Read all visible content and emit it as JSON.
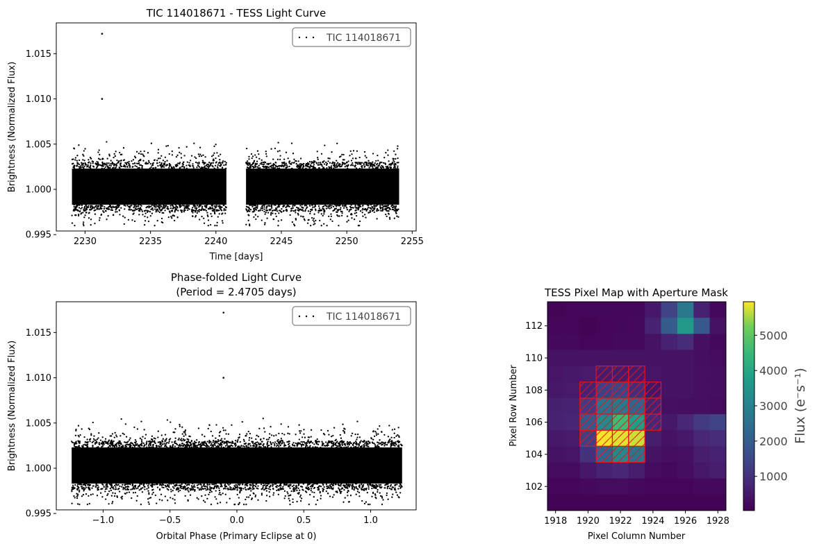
{
  "chart_data": [
    {
      "type": "scatter",
      "title": "TIC 114018671 - TESS Light Curve",
      "xlabel": "Time [days]",
      "ylabel": "Brightness (Normalized Flux)",
      "xlim": [
        2227.8,
        2255.3
      ],
      "ylim": [
        0.9954,
        1.0184
      ],
      "xticks": [
        2230,
        2235,
        2240,
        2245,
        2250,
        2255
      ],
      "yticks": [
        0.995,
        1.0,
        1.005,
        1.01,
        1.015
      ],
      "xtick_labels": [
        "2230",
        "2235",
        "2240",
        "2245",
        "2250",
        "2255"
      ],
      "ytick_labels": [
        "0.995",
        "1.000",
        "1.005",
        "1.010",
        "1.015"
      ],
      "legend": {
        "label": "TIC 114018671",
        "loc": "upper right"
      },
      "series": [
        {
          "segments": [
            {
              "x_start": 2229.0,
              "x_end": 2240.8
            },
            {
              "x_start": 2242.3,
              "x_end": 2254.0
            }
          ],
          "core_band": [
            0.9983,
            1.0023
          ],
          "scatter_range": [
            0.996,
            1.0055
          ],
          "outliers": [
            {
              "x": 2231.3,
              "y": 1.0172
            },
            {
              "x": 2231.3,
              "y": 1.01
            }
          ]
        }
      ]
    },
    {
      "type": "scatter",
      "title": "Phase-folded Light Curve\n(Period = 2.4705 days)",
      "title_lines": [
        "Phase-folded Light Curve",
        "(Period = 2.4705 days)"
      ],
      "xlabel": "Orbital Phase (Primary Eclipse at 0)",
      "ylabel": "Brightness (Normalized Flux)",
      "xlim": [
        -1.35,
        1.34
      ],
      "ylim": [
        0.9954,
        1.0184
      ],
      "xticks": [
        -1.0,
        -0.5,
        0.0,
        0.5,
        1.0
      ],
      "yticks": [
        0.995,
        1.0,
        1.005,
        1.01,
        1.015
      ],
      "xtick_labels": [
        "−1.0",
        "−0.5",
        "0.0",
        "0.5",
        "1.0"
      ],
      "ytick_labels": [
        "0.995",
        "1.000",
        "1.005",
        "1.010",
        "1.015"
      ],
      "legend": {
        "label": "TIC 114018671",
        "loc": "upper right"
      },
      "series": [
        {
          "segments": [
            {
              "x_start": -1.235,
              "x_end": 1.235
            }
          ],
          "core_band": [
            0.9983,
            1.0023
          ],
          "scatter_range": [
            0.996,
            1.0055
          ],
          "outliers": [
            {
              "x": -0.1,
              "y": 1.0172
            },
            {
              "x": -0.1,
              "y": 1.01
            }
          ]
        }
      ]
    },
    {
      "type": "heatmap",
      "title": "TESS Pixel Map with Aperture Mask",
      "xlabel": "Pixel Column Number",
      "ylabel": "Pixel Row Number",
      "x_start": 1917.5,
      "y_start": 100.5,
      "nx": 11,
      "ny": 13,
      "xlim": [
        1917.5,
        1928.5
      ],
      "ylim": [
        100.5,
        113.5
      ],
      "xticks": [
        1918,
        1920,
        1922,
        1924,
        1926,
        1928
      ],
      "yticks": [
        102,
        104,
        106,
        108,
        110,
        112
      ],
      "xtick_labels": [
        "1918",
        "1920",
        "1922",
        "1924",
        "1926",
        "1928"
      ],
      "ytick_labels": [
        "102",
        "104",
        "106",
        "108",
        "110",
        "112"
      ],
      "colormap": "viridis",
      "vmin": 50,
      "vmax": 5950,
      "colorbar": {
        "label": "Flux (e⁻s⁻¹)",
        "ticks": [
          1000,
          2000,
          3000,
          4000,
          5000
        ],
        "tick_labels": [
          "1000",
          "2000",
          "3000",
          "4000",
          "5000"
        ]
      },
      "values_rows_top_to_bottom": [
        [
          120,
          150,
          170,
          170,
          170,
          170,
          500,
          1400,
          2700,
          700,
          200
        ],
        [
          150,
          150,
          100,
          150,
          170,
          190,
          700,
          2000,
          3600,
          1900,
          400
        ],
        [
          200,
          200,
          150,
          150,
          200,
          200,
          380,
          700,
          900,
          350,
          200
        ],
        [
          380,
          380,
          380,
          380,
          380,
          380,
          380,
          400,
          400,
          300,
          250
        ],
        [
          450,
          500,
          550,
          550,
          550,
          550,
          450,
          400,
          400,
          350,
          300
        ],
        [
          500,
          550,
          700,
          1300,
          1400,
          900,
          450,
          400,
          400,
          350,
          300
        ],
        [
          650,
          700,
          1200,
          2500,
          2700,
          2200,
          700,
          350,
          300,
          300,
          250
        ],
        [
          700,
          750,
          1900,
          3200,
          4600,
          3800,
          800,
          500,
          800,
          1200,
          1400
        ],
        [
          500,
          550,
          1300,
          5900,
          5800,
          5700,
          600,
          400,
          500,
          800,
          900
        ],
        [
          400,
          450,
          1000,
          2200,
          3200,
          2600,
          400,
          300,
          350,
          600,
          700
        ],
        [
          250,
          250,
          500,
          700,
          800,
          600,
          250,
          200,
          300,
          500,
          600
        ],
        [
          150,
          150,
          200,
          250,
          250,
          200,
          150,
          150,
          150,
          200,
          200
        ],
        [
          100,
          100,
          100,
          100,
          100,
          100,
          100,
          100,
          100,
          100,
          100
        ]
      ],
      "aperture_mask_pixels": [
        [
          1921,
          109
        ],
        [
          1922,
          109
        ],
        [
          1923,
          109
        ],
        [
          1920,
          108
        ],
        [
          1921,
          108
        ],
        [
          1922,
          108
        ],
        [
          1923,
          108
        ],
        [
          1924,
          108
        ],
        [
          1920,
          107
        ],
        [
          1921,
          107
        ],
        [
          1922,
          107
        ],
        [
          1923,
          107
        ],
        [
          1924,
          107
        ],
        [
          1920,
          106
        ],
        [
          1921,
          106
        ],
        [
          1922,
          106
        ],
        [
          1923,
          106
        ],
        [
          1924,
          106
        ],
        [
          1920,
          105
        ],
        [
          1921,
          105
        ],
        [
          1922,
          105
        ],
        [
          1923,
          105
        ],
        [
          1921,
          104
        ],
        [
          1922,
          104
        ],
        [
          1923,
          104
        ]
      ],
      "mask_color": "#e5131d"
    }
  ]
}
